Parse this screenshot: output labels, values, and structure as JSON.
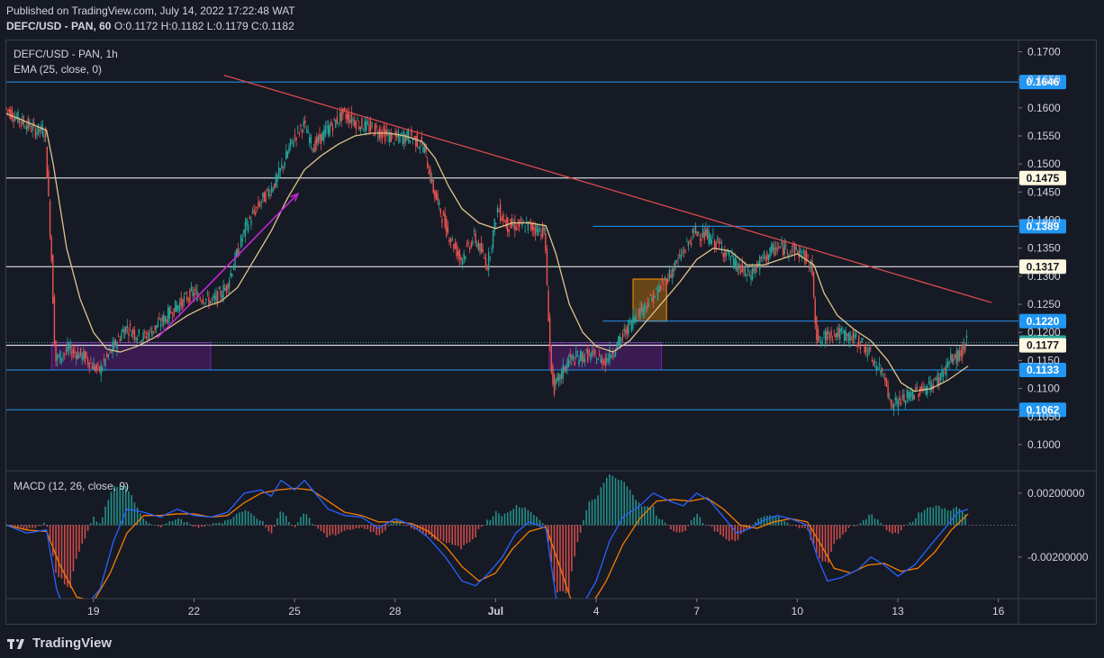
{
  "header": {
    "published": "Published on TradingView.com, July 14, 2022 17:22:48 WAT",
    "symbol": "DEFC/USD - PAN, 60",
    "o_label": "O:",
    "o": "0.1172",
    "h_label": "H:",
    "h": "0.1182",
    "l_label": "L:",
    "l": "0.1179",
    "c_label": "C:",
    "c": "0.1182"
  },
  "legend": {
    "title": "DEFC/USD - PAN, 1h",
    "ema": "EMA (25, close, 0)",
    "macd": "MACD (12, 26, close, 9)"
  },
  "footer": {
    "brand": "TradingView"
  },
  "colors": {
    "background": "#161a25",
    "up": "#26a69a",
    "down": "#ef5350",
    "ema": "#e0c38a",
    "macd": "#2962ff",
    "signal": "#f57c00",
    "trendline": "#e84c4c",
    "blue_level": "#2196f3",
    "white_level": "#ffffff",
    "purple_zone": "#7b1fa2",
    "orange_zone": "#ff9800",
    "arrow": "#c026d3"
  },
  "chart_data": {
    "type": "candlestick",
    "title": "DEFC/USD - PAN, 1h",
    "price_axis": {
      "ylim": [
        0.0955,
        0.172
      ],
      "ticks": [
        "0.1700",
        "0.1650",
        "0.1600",
        "0.1550",
        "0.1500",
        "0.1450",
        "0.1400",
        "0.1350",
        "0.1300",
        "0.1250",
        "0.1200",
        "0.1150",
        "0.1100",
        "0.1050",
        "0.1000"
      ]
    },
    "time_axis": {
      "ticks": [
        {
          "label": "19",
          "day": 19
        },
        {
          "label": "22",
          "day": 22
        },
        {
          "label": "25",
          "day": 25
        },
        {
          "label": "28",
          "day": 28
        },
        {
          "label": "Jul",
          "day": 31
        },
        {
          "label": "4",
          "day": 34
        },
        {
          "label": "7",
          "day": 37
        },
        {
          "label": "10",
          "day": 40
        },
        {
          "label": "13",
          "day": 43
        },
        {
          "label": "16",
          "day": 46
        }
      ],
      "start_day": 16.4,
      "end_day": 46.6
    },
    "price_path": [
      [
        16.4,
        0.16
      ],
      [
        16.8,
        0.158
      ],
      [
        17.3,
        0.156
      ],
      [
        17.6,
        0.156
      ],
      [
        17.8,
        0.132
      ],
      [
        17.9,
        0.115
      ],
      [
        18.3,
        0.117
      ],
      [
        18.8,
        0.1155
      ],
      [
        19.2,
        0.113
      ],
      [
        19.6,
        0.117
      ],
      [
        20.0,
        0.121
      ],
      [
        20.5,
        0.119
      ],
      [
        21.0,
        0.1215
      ],
      [
        21.5,
        0.1245
      ],
      [
        22.0,
        0.127
      ],
      [
        22.6,
        0.1255
      ],
      [
        23.0,
        0.128
      ],
      [
        23.6,
        0.139
      ],
      [
        24.0,
        0.143
      ],
      [
        24.5,
        0.147
      ],
      [
        25.0,
        0.1545
      ],
      [
        25.3,
        0.157
      ],
      [
        25.6,
        0.153
      ],
      [
        26.0,
        0.156
      ],
      [
        26.5,
        0.159
      ],
      [
        27.0,
        0.157
      ],
      [
        27.5,
        0.156
      ],
      [
        28.0,
        0.1545
      ],
      [
        28.5,
        0.155
      ],
      [
        28.9,
        0.153
      ],
      [
        29.2,
        0.145
      ],
      [
        29.6,
        0.138
      ],
      [
        30.0,
        0.133
      ],
      [
        30.4,
        0.137
      ],
      [
        30.8,
        0.132
      ],
      [
        31.1,
        0.142
      ],
      [
        31.4,
        0.139
      ],
      [
        32.0,
        0.139
      ],
      [
        32.5,
        0.138
      ],
      [
        32.7,
        0.113
      ],
      [
        32.8,
        0.11
      ],
      [
        33.2,
        0.115
      ],
      [
        33.8,
        0.116
      ],
      [
        34.3,
        0.115
      ],
      [
        34.7,
        0.118
      ],
      [
        35.2,
        0.123
      ],
      [
        35.7,
        0.126
      ],
      [
        36.2,
        0.13
      ],
      [
        36.6,
        0.134
      ],
      [
        37.0,
        0.138
      ],
      [
        37.4,
        0.137
      ],
      [
        37.8,
        0.135
      ],
      [
        38.2,
        0.132
      ],
      [
        38.6,
        0.13
      ],
      [
        39.0,
        0.133
      ],
      [
        39.4,
        0.135
      ],
      [
        39.8,
        0.135
      ],
      [
        40.2,
        0.134
      ],
      [
        40.5,
        0.131
      ],
      [
        40.6,
        0.12
      ],
      [
        40.7,
        0.118
      ],
      [
        41.0,
        0.12
      ],
      [
        41.5,
        0.1195
      ],
      [
        42.0,
        0.118
      ],
      [
        42.4,
        0.114
      ],
      [
        42.7,
        0.112
      ],
      [
        42.8,
        0.107
      ],
      [
        43.2,
        0.108
      ],
      [
        43.6,
        0.1095
      ],
      [
        44.0,
        0.1105
      ],
      [
        44.3,
        0.112
      ],
      [
        44.6,
        0.115
      ],
      [
        44.9,
        0.116
      ],
      [
        45.1,
        0.1182
      ]
    ],
    "ema_path": [
      [
        16.4,
        0.159
      ],
      [
        17.6,
        0.156
      ],
      [
        17.8,
        0.15
      ],
      [
        18.2,
        0.135
      ],
      [
        18.6,
        0.126
      ],
      [
        19.0,
        0.12
      ],
      [
        19.4,
        0.117
      ],
      [
        19.8,
        0.1165
      ],
      [
        20.3,
        0.1175
      ],
      [
        20.8,
        0.119
      ],
      [
        21.3,
        0.121
      ],
      [
        21.8,
        0.123
      ],
      [
        22.3,
        0.1245
      ],
      [
        22.8,
        0.1255
      ],
      [
        23.3,
        0.128
      ],
      [
        23.8,
        0.133
      ],
      [
        24.3,
        0.138
      ],
      [
        24.8,
        0.144
      ],
      [
        25.3,
        0.149
      ],
      [
        25.8,
        0.1515
      ],
      [
        26.3,
        0.1535
      ],
      [
        26.8,
        0.155
      ],
      [
        27.3,
        0.1555
      ],
      [
        27.8,
        0.1555
      ],
      [
        28.3,
        0.155
      ],
      [
        28.8,
        0.154
      ],
      [
        29.2,
        0.151
      ],
      [
        29.6,
        0.146
      ],
      [
        30.0,
        0.142
      ],
      [
        30.5,
        0.1395
      ],
      [
        31.0,
        0.1385
      ],
      [
        31.5,
        0.1395
      ],
      [
        32.0,
        0.1395
      ],
      [
        32.5,
        0.139
      ],
      [
        32.8,
        0.134
      ],
      [
        33.2,
        0.125
      ],
      [
        33.6,
        0.12
      ],
      [
        34.0,
        0.1175
      ],
      [
        34.5,
        0.1165
      ],
      [
        35.0,
        0.1185
      ],
      [
        35.5,
        0.122
      ],
      [
        36.0,
        0.1255
      ],
      [
        36.5,
        0.129
      ],
      [
        37.0,
        0.133
      ],
      [
        37.5,
        0.135
      ],
      [
        38.0,
        0.1345
      ],
      [
        38.5,
        0.132
      ],
      [
        39.0,
        0.132
      ],
      [
        39.5,
        0.133
      ],
      [
        40.0,
        0.134
      ],
      [
        40.5,
        0.132
      ],
      [
        40.8,
        0.127
      ],
      [
        41.2,
        0.123
      ],
      [
        41.7,
        0.1205
      ],
      [
        42.2,
        0.1185
      ],
      [
        42.7,
        0.115
      ],
      [
        43.1,
        0.111
      ],
      [
        43.5,
        0.1095
      ],
      [
        44.0,
        0.11
      ],
      [
        44.5,
        0.1115
      ],
      [
        45.1,
        0.114
      ]
    ],
    "macd_axis": {
      "ylim": [
        -0.0046,
        0.0034
      ],
      "ticks": [
        "0.00200000",
        "-0.00200000"
      ]
    },
    "macd_path": [
      [
        16.4,
        0.0
      ],
      [
        17.0,
        -0.0005
      ],
      [
        17.6,
        -0.0003
      ],
      [
        17.9,
        -0.004
      ],
      [
        18.3,
        -0.0062
      ],
      [
        18.8,
        -0.005
      ],
      [
        19.2,
        -0.004
      ],
      [
        19.6,
        -0.001
      ],
      [
        20.0,
        0.001
      ],
      [
        20.5,
        0.0008
      ],
      [
        21.0,
        0.0005
      ],
      [
        21.5,
        0.001
      ],
      [
        22.0,
        0.0006
      ],
      [
        22.5,
        0.0005
      ],
      [
        23.0,
        0.0008
      ],
      [
        23.5,
        0.002
      ],
      [
        24.0,
        0.0022
      ],
      [
        24.3,
        0.0018
      ],
      [
        24.6,
        0.0028
      ],
      [
        25.0,
        0.0022
      ],
      [
        25.3,
        0.0028
      ],
      [
        25.7,
        0.0018
      ],
      [
        26.0,
        0.001
      ],
      [
        26.5,
        0.0006
      ],
      [
        27.0,
        0.0005
      ],
      [
        27.5,
        -0.0002
      ],
      [
        28.0,
        0.0004
      ],
      [
        28.5,
        0.0
      ],
      [
        29.0,
        -0.0008
      ],
      [
        29.5,
        -0.002
      ],
      [
        30.0,
        -0.0035
      ],
      [
        30.4,
        -0.0038
      ],
      [
        30.8,
        -0.003
      ],
      [
        31.2,
        -0.002
      ],
      [
        31.6,
        -0.0005
      ],
      [
        32.0,
        0.0002
      ],
      [
        32.5,
        -0.0002
      ],
      [
        32.8,
        -0.0045
      ],
      [
        33.2,
        -0.007
      ],
      [
        33.6,
        -0.005
      ],
      [
        34.0,
        -0.0035
      ],
      [
        34.4,
        -0.001
      ],
      [
        34.8,
        0.0005
      ],
      [
        35.3,
        0.0012
      ],
      [
        35.7,
        0.002
      ],
      [
        36.2,
        0.0015
      ],
      [
        36.6,
        0.0012
      ],
      [
        37.0,
        0.002
      ],
      [
        37.4,
        0.0015
      ],
      [
        37.8,
        0.0005
      ],
      [
        38.2,
        -0.0005
      ],
      [
        38.6,
        -0.0002
      ],
      [
        39.0,
        0.0003
      ],
      [
        39.4,
        0.0006
      ],
      [
        39.8,
        0.0004
      ],
      [
        40.3,
        0.0
      ],
      [
        40.6,
        -0.002
      ],
      [
        40.9,
        -0.0035
      ],
      [
        41.3,
        -0.0033
      ],
      [
        41.8,
        -0.0028
      ],
      [
        42.2,
        -0.002
      ],
      [
        42.6,
        -0.0025
      ],
      [
        43.0,
        -0.0032
      ],
      [
        43.5,
        -0.0025
      ],
      [
        44.0,
        -0.0012
      ],
      [
        44.4,
        -0.0002
      ],
      [
        44.8,
        0.0008
      ],
      [
        45.1,
        0.001
      ]
    ],
    "signal_path": [
      [
        16.4,
        0.0
      ],
      [
        17.0,
        -0.0003
      ],
      [
        17.6,
        -0.0004
      ],
      [
        18.0,
        -0.0025
      ],
      [
        18.5,
        -0.0045
      ],
      [
        19.0,
        -0.0048
      ],
      [
        19.5,
        -0.003
      ],
      [
        20.0,
        -0.0005
      ],
      [
        20.5,
        0.0006
      ],
      [
        21.0,
        0.0006
      ],
      [
        21.5,
        0.0007
      ],
      [
        22.0,
        0.0007
      ],
      [
        22.5,
        0.0005
      ],
      [
        23.0,
        0.0006
      ],
      [
        23.5,
        0.0014
      ],
      [
        24.0,
        0.002
      ],
      [
        24.5,
        0.0022
      ],
      [
        25.0,
        0.0023
      ],
      [
        25.5,
        0.0022
      ],
      [
        26.0,
        0.0015
      ],
      [
        26.5,
        0.0008
      ],
      [
        27.0,
        0.0006
      ],
      [
        27.5,
        0.0002
      ],
      [
        28.0,
        0.0002
      ],
      [
        28.5,
        0.0001
      ],
      [
        29.0,
        -0.0004
      ],
      [
        29.5,
        -0.0013
      ],
      [
        30.0,
        -0.0026
      ],
      [
        30.5,
        -0.0035
      ],
      [
        31.0,
        -0.003
      ],
      [
        31.5,
        -0.0015
      ],
      [
        32.0,
        -0.0004
      ],
      [
        32.5,
        -0.0001
      ],
      [
        32.9,
        -0.0025
      ],
      [
        33.3,
        -0.005
      ],
      [
        33.8,
        -0.0052
      ],
      [
        34.3,
        -0.0035
      ],
      [
        34.8,
        -0.0012
      ],
      [
        35.3,
        0.0004
      ],
      [
        35.8,
        0.0015
      ],
      [
        36.3,
        0.0016
      ],
      [
        36.8,
        0.0015
      ],
      [
        37.3,
        0.0017
      ],
      [
        37.8,
        0.001
      ],
      [
        38.3,
        0.0
      ],
      [
        38.8,
        -0.0002
      ],
      [
        39.3,
        0.0002
      ],
      [
        39.8,
        0.0004
      ],
      [
        40.3,
        0.0002
      ],
      [
        40.7,
        -0.0012
      ],
      [
        41.1,
        -0.0027
      ],
      [
        41.6,
        -0.003
      ],
      [
        42.1,
        -0.0025
      ],
      [
        42.6,
        -0.0024
      ],
      [
        43.1,
        -0.0029
      ],
      [
        43.6,
        -0.0027
      ],
      [
        44.1,
        -0.0017
      ],
      [
        44.6,
        -0.0003
      ],
      [
        45.1,
        0.0007
      ]
    ],
    "horizontal_levels": [
      {
        "value": "0.1646",
        "price": 0.1646,
        "style": "blue",
        "label_bg": "#2196f3"
      },
      {
        "value": "0.1475",
        "price": 0.1475,
        "style": "white",
        "label_bg": "#fff8e1"
      },
      {
        "value": "0.1389",
        "price": 0.1389,
        "style": "blue",
        "label_bg": "#2196f3",
        "start_day": 33.9
      },
      {
        "value": "0.1317",
        "price": 0.1317,
        "style": "white",
        "label_bg": "#fff8e1"
      },
      {
        "value": "0.1220",
        "price": 0.122,
        "style": "blue",
        "label_bg": "#2196f3",
        "start_day": 34.2
      },
      {
        "value": "0.1182",
        "price": 0.1182,
        "style": "dotted",
        "label_bg": "#26a69a"
      },
      {
        "value": "0.1177",
        "price": 0.1177,
        "style": "white",
        "label_bg": "#fff8e1"
      },
      {
        "value": "0.1133",
        "price": 0.1133,
        "style": "blue",
        "label_bg": "#2196f3"
      },
      {
        "value": "0.1062",
        "price": 0.1062,
        "style": "blue",
        "label_bg": "#2196f3"
      }
    ],
    "trendline": {
      "from": [
        22.9,
        0.1658
      ],
      "to": [
        45.8,
        0.1253
      ]
    },
    "zones": [
      {
        "kind": "purple",
        "day0": 17.75,
        "day1": 22.5,
        "p0": 0.1133,
        "p1": 0.1182
      },
      {
        "kind": "purple",
        "day0": 32.6,
        "day1": 35.95,
        "p0": 0.1133,
        "p1": 0.1182
      },
      {
        "kind": "orange",
        "day0": 35.1,
        "day1": 36.1,
        "p0": 0.122,
        "p1": 0.1295
      }
    ],
    "arrow": {
      "from": [
        20.9,
        0.119
      ],
      "to": [
        25.1,
        0.1447
      ]
    }
  }
}
